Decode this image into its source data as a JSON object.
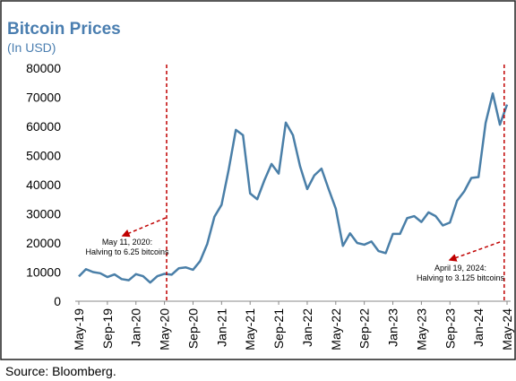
{
  "chart_data": {
    "type": "line",
    "title": "Bitcoin Prices",
    "subtitle": "(In USD)",
    "source": "Source: Bloomberg.",
    "categories": [
      "May-19",
      null,
      null,
      null,
      "Sep-19",
      null,
      null,
      null,
      "Jan-20",
      null,
      null,
      null,
      "May-20",
      null,
      null,
      null,
      "Sep-20",
      null,
      null,
      null,
      "Jan-21",
      null,
      null,
      null,
      "May-21",
      null,
      null,
      null,
      "Sep-21",
      null,
      null,
      null,
      "Jan-22",
      null,
      null,
      null,
      "May-22",
      null,
      null,
      null,
      "Sep-22",
      null,
      null,
      null,
      "Jan-23",
      null,
      null,
      null,
      "May-23",
      null,
      null,
      null,
      "Sep-23",
      null,
      null,
      null,
      "Jan-24",
      null,
      null,
      null,
      "May-24"
    ],
    "series": [
      {
        "name": "Bitcoin",
        "color": "#4a7fa8",
        "values": [
          8500,
          11000,
          10000,
          9600,
          8300,
          9200,
          7600,
          7200,
          9300,
          8600,
          6400,
          8600,
          9400,
          9100,
          11300,
          11600,
          10800,
          13800,
          19700,
          29000,
          33100,
          45200,
          58800,
          57000,
          37000,
          35000,
          41500,
          47100,
          43800,
          61300,
          57000,
          46300,
          38500,
          43200,
          45500,
          38500,
          31800,
          19000,
          23300,
          20000,
          19400,
          20500,
          17200,
          16500,
          23100,
          23100,
          28500,
          29200,
          27200,
          30500,
          29200,
          26000,
          27000,
          34500,
          37700,
          42300,
          42600,
          61200,
          71300,
          60600,
          67500
        ]
      }
    ],
    "ylim": [
      0,
      80000
    ],
    "yticks": [
      0,
      10000,
      20000,
      30000,
      40000,
      50000,
      60000,
      70000,
      80000
    ],
    "annotations": [
      {
        "lines": [
          "May 11, 2020:",
          "Halving to 6.25 bitcoins"
        ]
      },
      {
        "lines": [
          "April 19, 2024:",
          "Halving to 3.125 bitcoins"
        ]
      }
    ]
  }
}
